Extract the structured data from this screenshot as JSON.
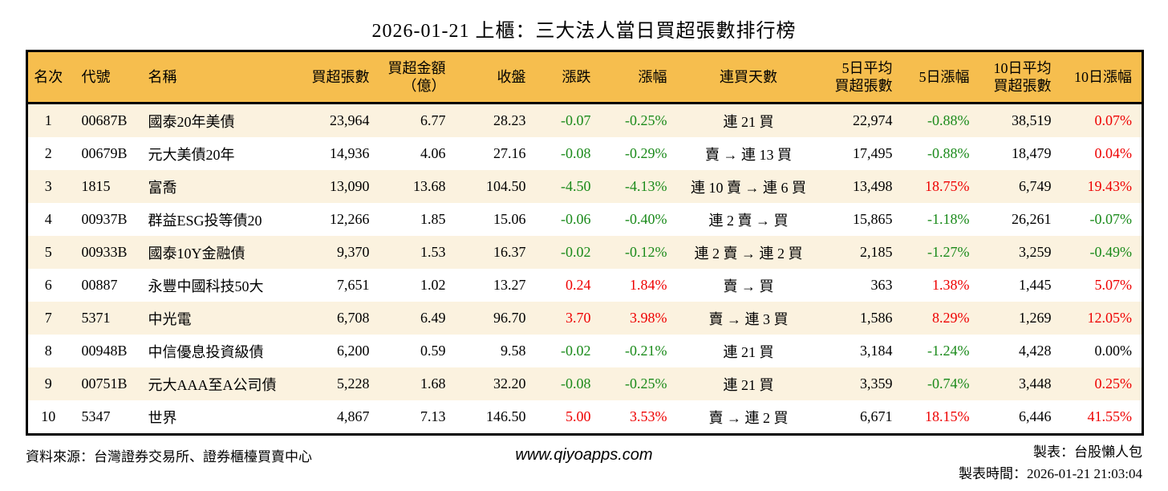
{
  "title": "2026-01-21 上櫃：三大法人當日買超張數排行榜",
  "colors": {
    "header_bg": "#f6be4e",
    "stripe_bg": "#fbf2df",
    "up": "#ee0000",
    "down": "#1a8a1a",
    "flat": "#000000"
  },
  "table": {
    "headers": {
      "rank": "名次",
      "code": "代號",
      "name": "名稱",
      "net_buy": "買超張數",
      "amount": "買超金額\n（億）",
      "close": "收盤",
      "change": "漲跌",
      "change_pct": "漲幅",
      "streak": "連買天數",
      "avg5": "5日平均\n買超張數",
      "pct5": "5日漲幅",
      "avg10": "10日平均\n買超張數",
      "pct10": "10日漲幅"
    },
    "rows": [
      {
        "rank": "1",
        "code": "00687B",
        "name": "國泰20年美債",
        "net_buy": "23,964",
        "amount": "6.77",
        "close": "28.23",
        "change": "-0.07",
        "change_dir": "down",
        "change_pct": "-0.25%",
        "change_pct_dir": "down",
        "streak": "連 21 買",
        "avg5": "22,974",
        "pct5": "-0.88%",
        "pct5_dir": "down",
        "avg10": "38,519",
        "pct10": "0.07%",
        "pct10_dir": "up"
      },
      {
        "rank": "2",
        "code": "00679B",
        "name": "元大美債20年",
        "net_buy": "14,936",
        "amount": "4.06",
        "close": "27.16",
        "change": "-0.08",
        "change_dir": "down",
        "change_pct": "-0.29%",
        "change_pct_dir": "down",
        "streak": "賣 → 連 13 買",
        "avg5": "17,495",
        "pct5": "-0.88%",
        "pct5_dir": "down",
        "avg10": "18,479",
        "pct10": "0.04%",
        "pct10_dir": "up"
      },
      {
        "rank": "3",
        "code": "1815",
        "name": "富喬",
        "net_buy": "13,090",
        "amount": "13.68",
        "close": "104.50",
        "change": "-4.50",
        "change_dir": "down",
        "change_pct": "-4.13%",
        "change_pct_dir": "down",
        "streak": "連 10 賣 → 連 6 買",
        "avg5": "13,498",
        "pct5": "18.75%",
        "pct5_dir": "up",
        "avg10": "6,749",
        "pct10": "19.43%",
        "pct10_dir": "up"
      },
      {
        "rank": "4",
        "code": "00937B",
        "name": "群益ESG投等債20",
        "net_buy": "12,266",
        "amount": "1.85",
        "close": "15.06",
        "change": "-0.06",
        "change_dir": "down",
        "change_pct": "-0.40%",
        "change_pct_dir": "down",
        "streak": "連 2 賣 → 買",
        "avg5": "15,865",
        "pct5": "-1.18%",
        "pct5_dir": "down",
        "avg10": "26,261",
        "pct10": "-0.07%",
        "pct10_dir": "down"
      },
      {
        "rank": "5",
        "code": "00933B",
        "name": "國泰10Y金融債",
        "net_buy": "9,370",
        "amount": "1.53",
        "close": "16.37",
        "change": "-0.02",
        "change_dir": "down",
        "change_pct": "-0.12%",
        "change_pct_dir": "down",
        "streak": "連 2 賣 → 連 2 買",
        "avg5": "2,185",
        "pct5": "-1.27%",
        "pct5_dir": "down",
        "avg10": "3,259",
        "pct10": "-0.49%",
        "pct10_dir": "down"
      },
      {
        "rank": "6",
        "code": "00887",
        "name": "永豐中國科技50大",
        "net_buy": "7,651",
        "amount": "1.02",
        "close": "13.27",
        "change": "0.24",
        "change_dir": "up",
        "change_pct": "1.84%",
        "change_pct_dir": "up",
        "streak": "賣 → 買",
        "avg5": "363",
        "pct5": "1.38%",
        "pct5_dir": "up",
        "avg10": "1,445",
        "pct10": "5.07%",
        "pct10_dir": "up"
      },
      {
        "rank": "7",
        "code": "5371",
        "name": "中光電",
        "net_buy": "6,708",
        "amount": "6.49",
        "close": "96.70",
        "change": "3.70",
        "change_dir": "up",
        "change_pct": "3.98%",
        "change_pct_dir": "up",
        "streak": "賣 → 連 3 買",
        "avg5": "1,586",
        "pct5": "8.29%",
        "pct5_dir": "up",
        "avg10": "1,269",
        "pct10": "12.05%",
        "pct10_dir": "up"
      },
      {
        "rank": "8",
        "code": "00948B",
        "name": "中信優息投資級債",
        "net_buy": "6,200",
        "amount": "0.59",
        "close": "9.58",
        "change": "-0.02",
        "change_dir": "down",
        "change_pct": "-0.21%",
        "change_pct_dir": "down",
        "streak": "連 21 買",
        "avg5": "3,184",
        "pct5": "-1.24%",
        "pct5_dir": "down",
        "avg10": "4,428",
        "pct10": "0.00%",
        "pct10_dir": "flat"
      },
      {
        "rank": "9",
        "code": "00751B",
        "name": "元大AAA至A公司債",
        "net_buy": "5,228",
        "amount": "1.68",
        "close": "32.20",
        "change": "-0.08",
        "change_dir": "down",
        "change_pct": "-0.25%",
        "change_pct_dir": "down",
        "streak": "連 21 買",
        "avg5": "3,359",
        "pct5": "-0.74%",
        "pct5_dir": "down",
        "avg10": "3,448",
        "pct10": "0.25%",
        "pct10_dir": "up"
      },
      {
        "rank": "10",
        "code": "5347",
        "name": "世界",
        "net_buy": "4,867",
        "amount": "7.13",
        "close": "146.50",
        "change": "5.00",
        "change_dir": "up",
        "change_pct": "3.53%",
        "change_pct_dir": "up",
        "streak": "賣 → 連 2 買",
        "avg5": "6,671",
        "pct5": "18.15%",
        "pct5_dir": "up",
        "avg10": "6,446",
        "pct10": "41.55%",
        "pct10_dir": "up"
      }
    ]
  },
  "footer": {
    "source": "資料來源：台灣證券交易所、證券櫃檯買賣中心",
    "website": "www.qiyoapps.com",
    "maker": "製表：台股懶人包",
    "timestamp": "製表時間：2026-01-21 21:03:04"
  }
}
